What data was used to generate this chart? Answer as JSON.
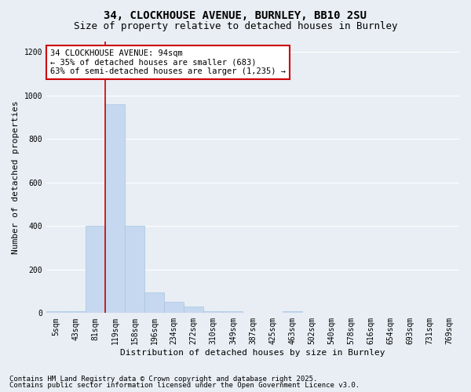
{
  "title_line1": "34, CLOCKHOUSE AVENUE, BURNLEY, BB10 2SU",
  "title_line2": "Size of property relative to detached houses in Burnley",
  "xlabel": "Distribution of detached houses by size in Burnley",
  "ylabel": "Number of detached properties",
  "categories": [
    "5sqm",
    "43sqm",
    "81sqm",
    "119sqm",
    "158sqm",
    "196sqm",
    "234sqm",
    "272sqm",
    "310sqm",
    "349sqm",
    "387sqm",
    "425sqm",
    "463sqm",
    "502sqm",
    "540sqm",
    "578sqm",
    "616sqm",
    "654sqm",
    "693sqm",
    "731sqm",
    "769sqm"
  ],
  "values": [
    8,
    8,
    400,
    960,
    400,
    95,
    50,
    30,
    8,
    8,
    0,
    0,
    8,
    0,
    0,
    0,
    0,
    0,
    0,
    0,
    0
  ],
  "bar_color": "#c5d8ef",
  "bar_edge_color": "#a8c4e0",
  "vline_x_index": 2.5,
  "vline_color": "#cc0000",
  "annotation_text": "34 CLOCKHOUSE AVENUE: 94sqm\n← 35% of detached houses are smaller (683)\n63% of semi-detached houses are larger (1,235) →",
  "annotation_box_color": "#ffffff",
  "annotation_box_edge_color": "#cc0000",
  "ylim": [
    0,
    1250
  ],
  "yticks": [
    0,
    200,
    400,
    600,
    800,
    1000,
    1200
  ],
  "background_color": "#e8eef4",
  "plot_bg_color": "#e8eef4",
  "footer_line1": "Contains HM Land Registry data © Crown copyright and database right 2025.",
  "footer_line2": "Contains public sector information licensed under the Open Government Licence v3.0.",
  "grid_color": "#ffffff",
  "title_fontsize": 10,
  "subtitle_fontsize": 9,
  "tick_fontsize": 7,
  "label_fontsize": 8,
  "annotation_fontsize": 7.5,
  "footer_fontsize": 6.5
}
